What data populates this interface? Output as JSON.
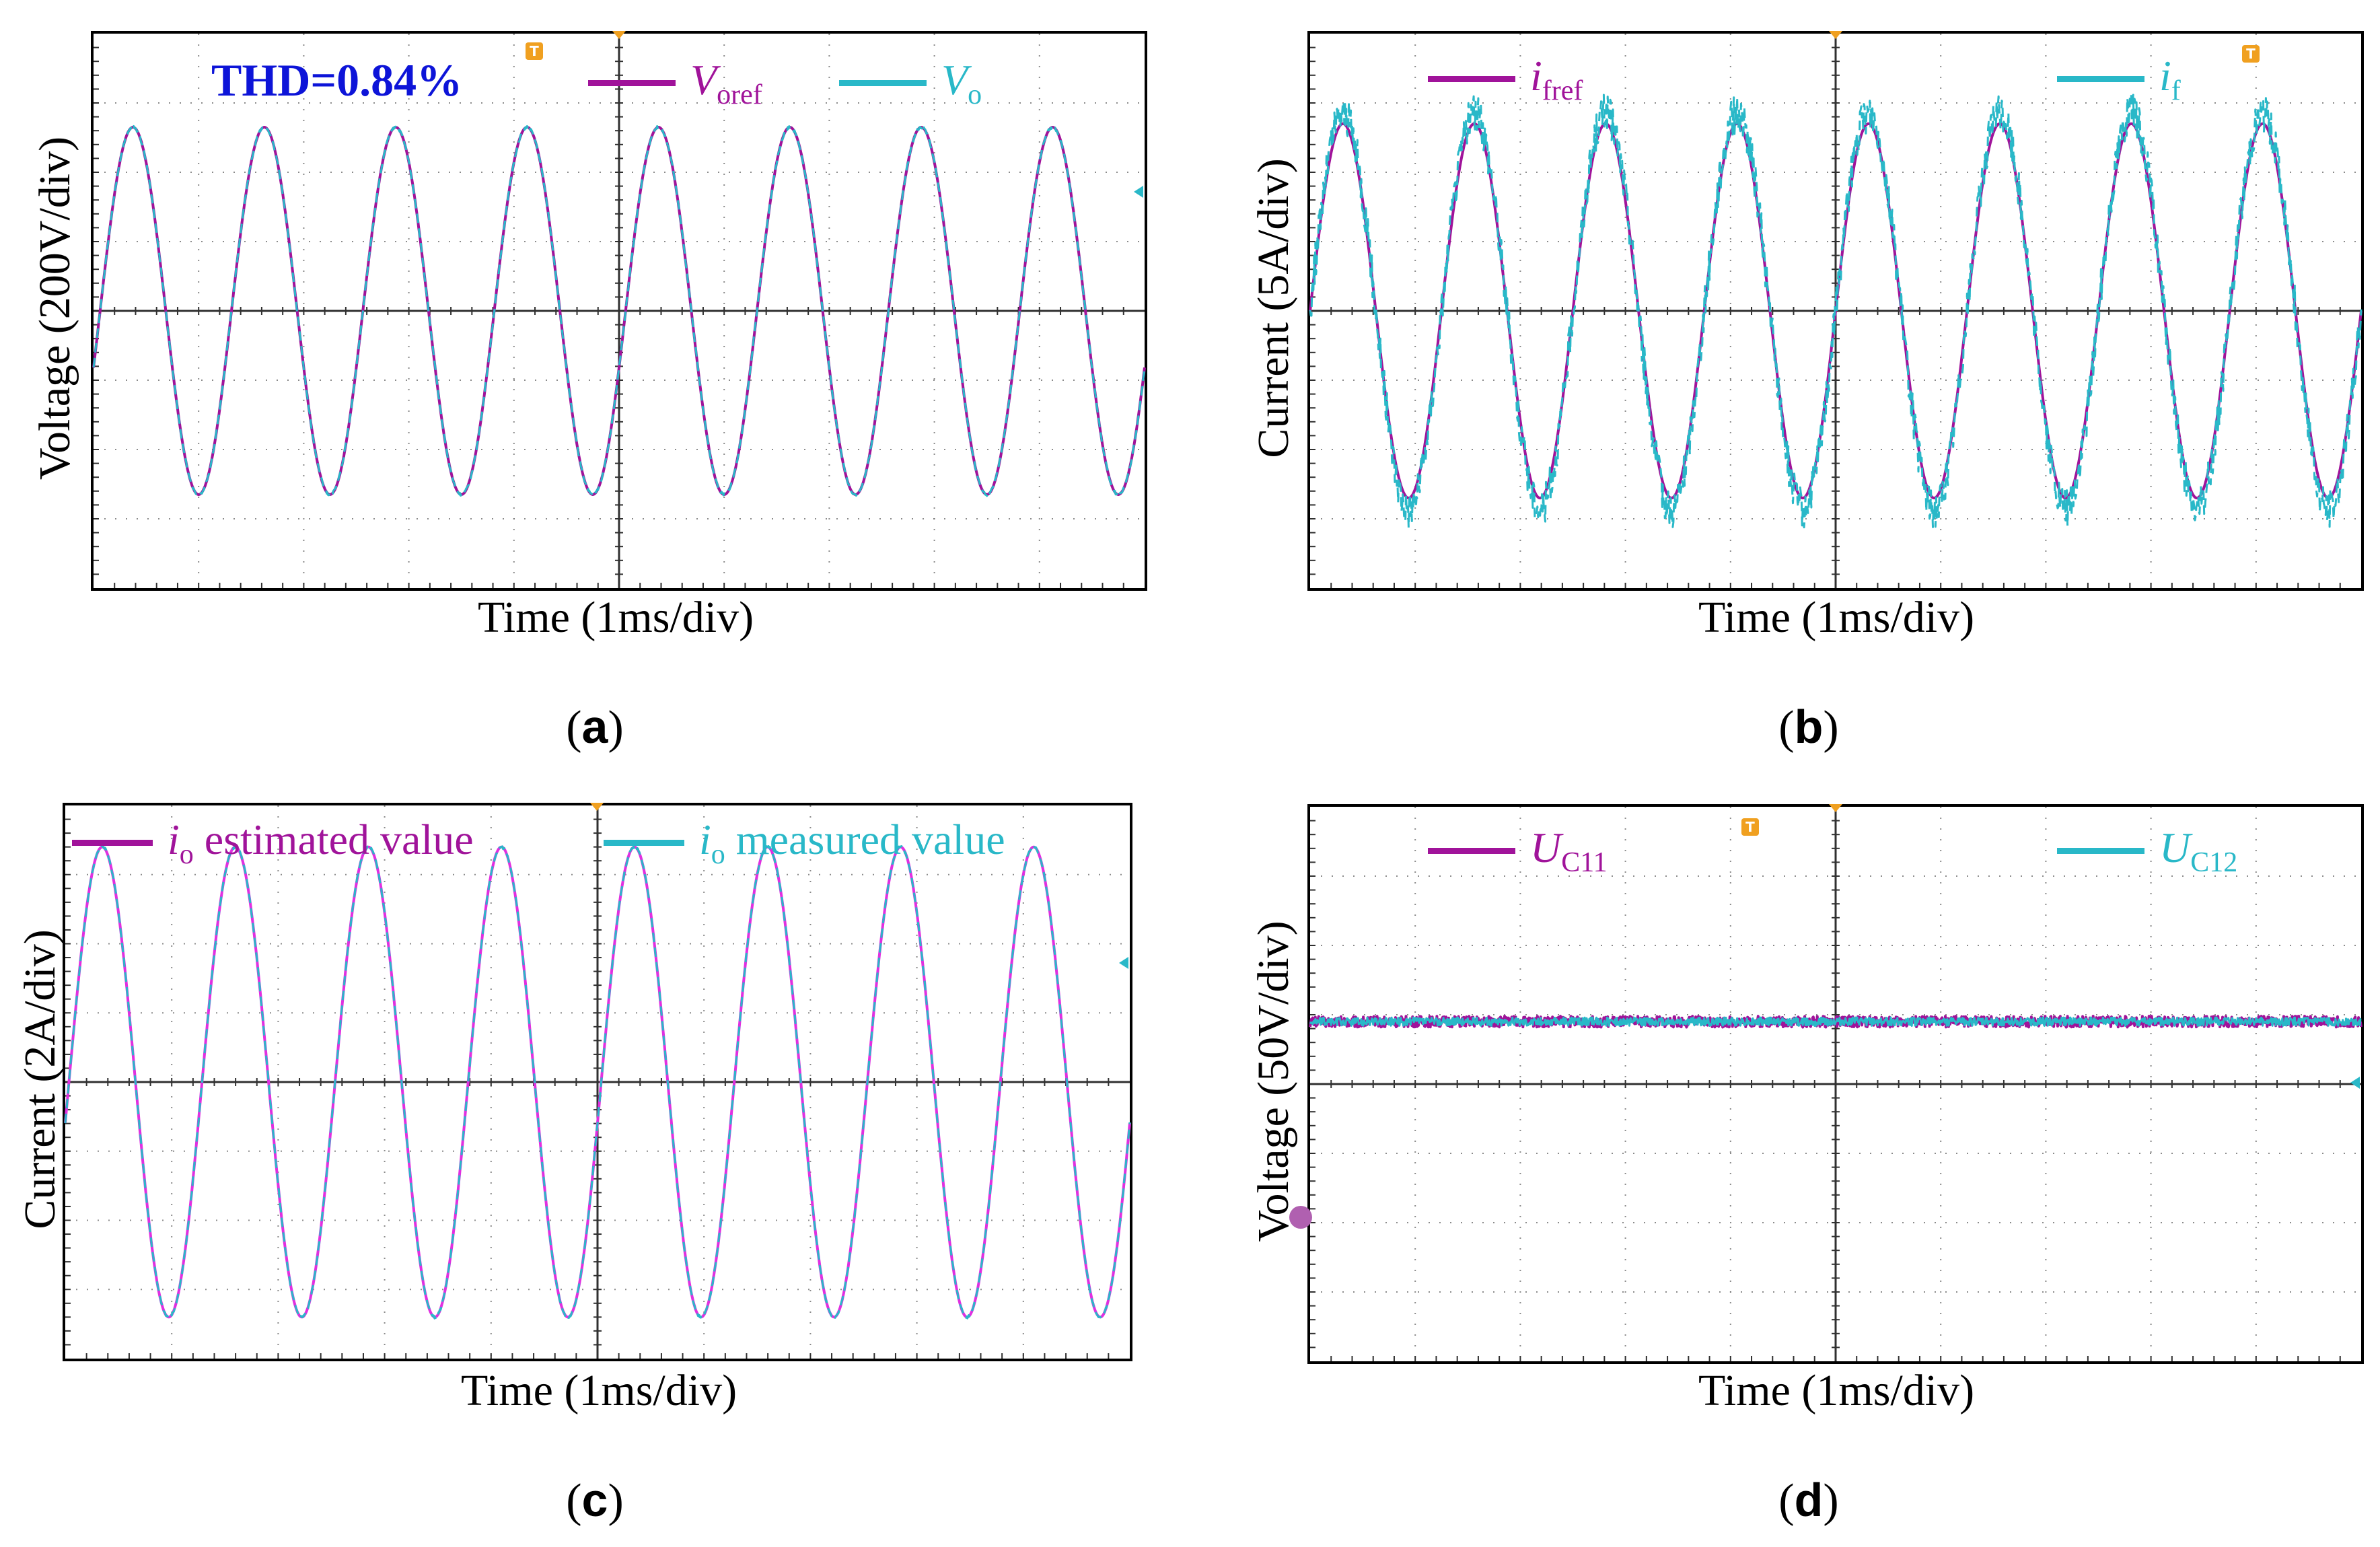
{
  "colors": {
    "reference": "#a0139a",
    "measured": "#29b8c8",
    "grid": "#6f6f6f",
    "thd_text": "#0d14d8",
    "trigger": "#f0a020"
  },
  "chart_data": [
    {
      "panel": "a",
      "type": "line",
      "caption": "(a)",
      "caption_letter": "a",
      "ylabel": "Voltage (200V/div)",
      "xlabel": "Time (1ms/div)",
      "annotation": "THD=0.84%",
      "divisions": {
        "x": 10,
        "y": 8
      },
      "xlim": [
        0,
        10
      ],
      "ylim": [
        -4,
        4
      ],
      "frequency_cycles_per_div": 0.8,
      "series": [
        {
          "name": "V",
          "sub": "oref",
          "color": "#a0139a",
          "amplitude_div": 2.65,
          "phase_deg": -18,
          "noise_div": 0
        },
        {
          "name": "V",
          "sub": "o",
          "color": "#29b8c8",
          "amplitude_div": 2.65,
          "phase_deg": -18,
          "noise_div": 0.02
        }
      ]
    },
    {
      "panel": "b",
      "type": "line",
      "caption": "(b)",
      "caption_letter": "b",
      "ylabel": "Current (5A/div)",
      "xlabel": "Time (1ms/div)",
      "divisions": {
        "x": 10,
        "y": 8
      },
      "xlim": [
        0,
        10
      ],
      "ylim": [
        -4,
        4
      ],
      "frequency_cycles_per_div": 0.8,
      "series": [
        {
          "name": "i",
          "sub": "fref",
          "color": "#a0139a",
          "amplitude_div": 2.7,
          "phase_deg": 0,
          "noise_div": 0
        },
        {
          "name": "i",
          "sub": "f",
          "color": "#29b8c8",
          "amplitude_div": 2.85,
          "phase_deg": 0,
          "noise_div": 0.28
        }
      ]
    },
    {
      "panel": "c",
      "type": "line",
      "caption": "(c)",
      "caption_letter": "c",
      "ylabel": "Current (2A/div)",
      "xlabel": "Time (1ms/div)",
      "divisions": {
        "x": 10,
        "y": 8
      },
      "xlim": [
        0,
        10
      ],
      "ylim": [
        -4,
        4
      ],
      "frequency_cycles_per_div": 0.8,
      "series": [
        {
          "name": "i",
          "sub": "o",
          "suffix": " estimated value",
          "color": "#e030e0",
          "amplitude_div": 3.4,
          "phase_deg": -10,
          "noise_div": 0
        },
        {
          "name": "i",
          "sub": "o",
          "suffix": " measured value",
          "color": "#29b8c8",
          "amplitude_div": 3.4,
          "phase_deg": -10,
          "noise_div": 0.02
        }
      ]
    },
    {
      "panel": "d",
      "type": "line",
      "caption": "(d)",
      "caption_letter": "d",
      "ylabel": "Voltage (50V/div)",
      "xlabel": "Time (1ms/div)",
      "divisions": {
        "x": 10,
        "y": 8
      },
      "xlim": [
        0,
        10
      ],
      "ylim": [
        -4,
        4
      ],
      "series": [
        {
          "name": "U",
          "sub": "C11",
          "color": "#a0139a",
          "dc_level_div": 0.9,
          "noise_div": 0.08
        },
        {
          "name": "U",
          "sub": "C12",
          "color": "#29b8c8",
          "dc_level_div": 0.9,
          "noise_div": 0.06
        }
      ]
    }
  ]
}
